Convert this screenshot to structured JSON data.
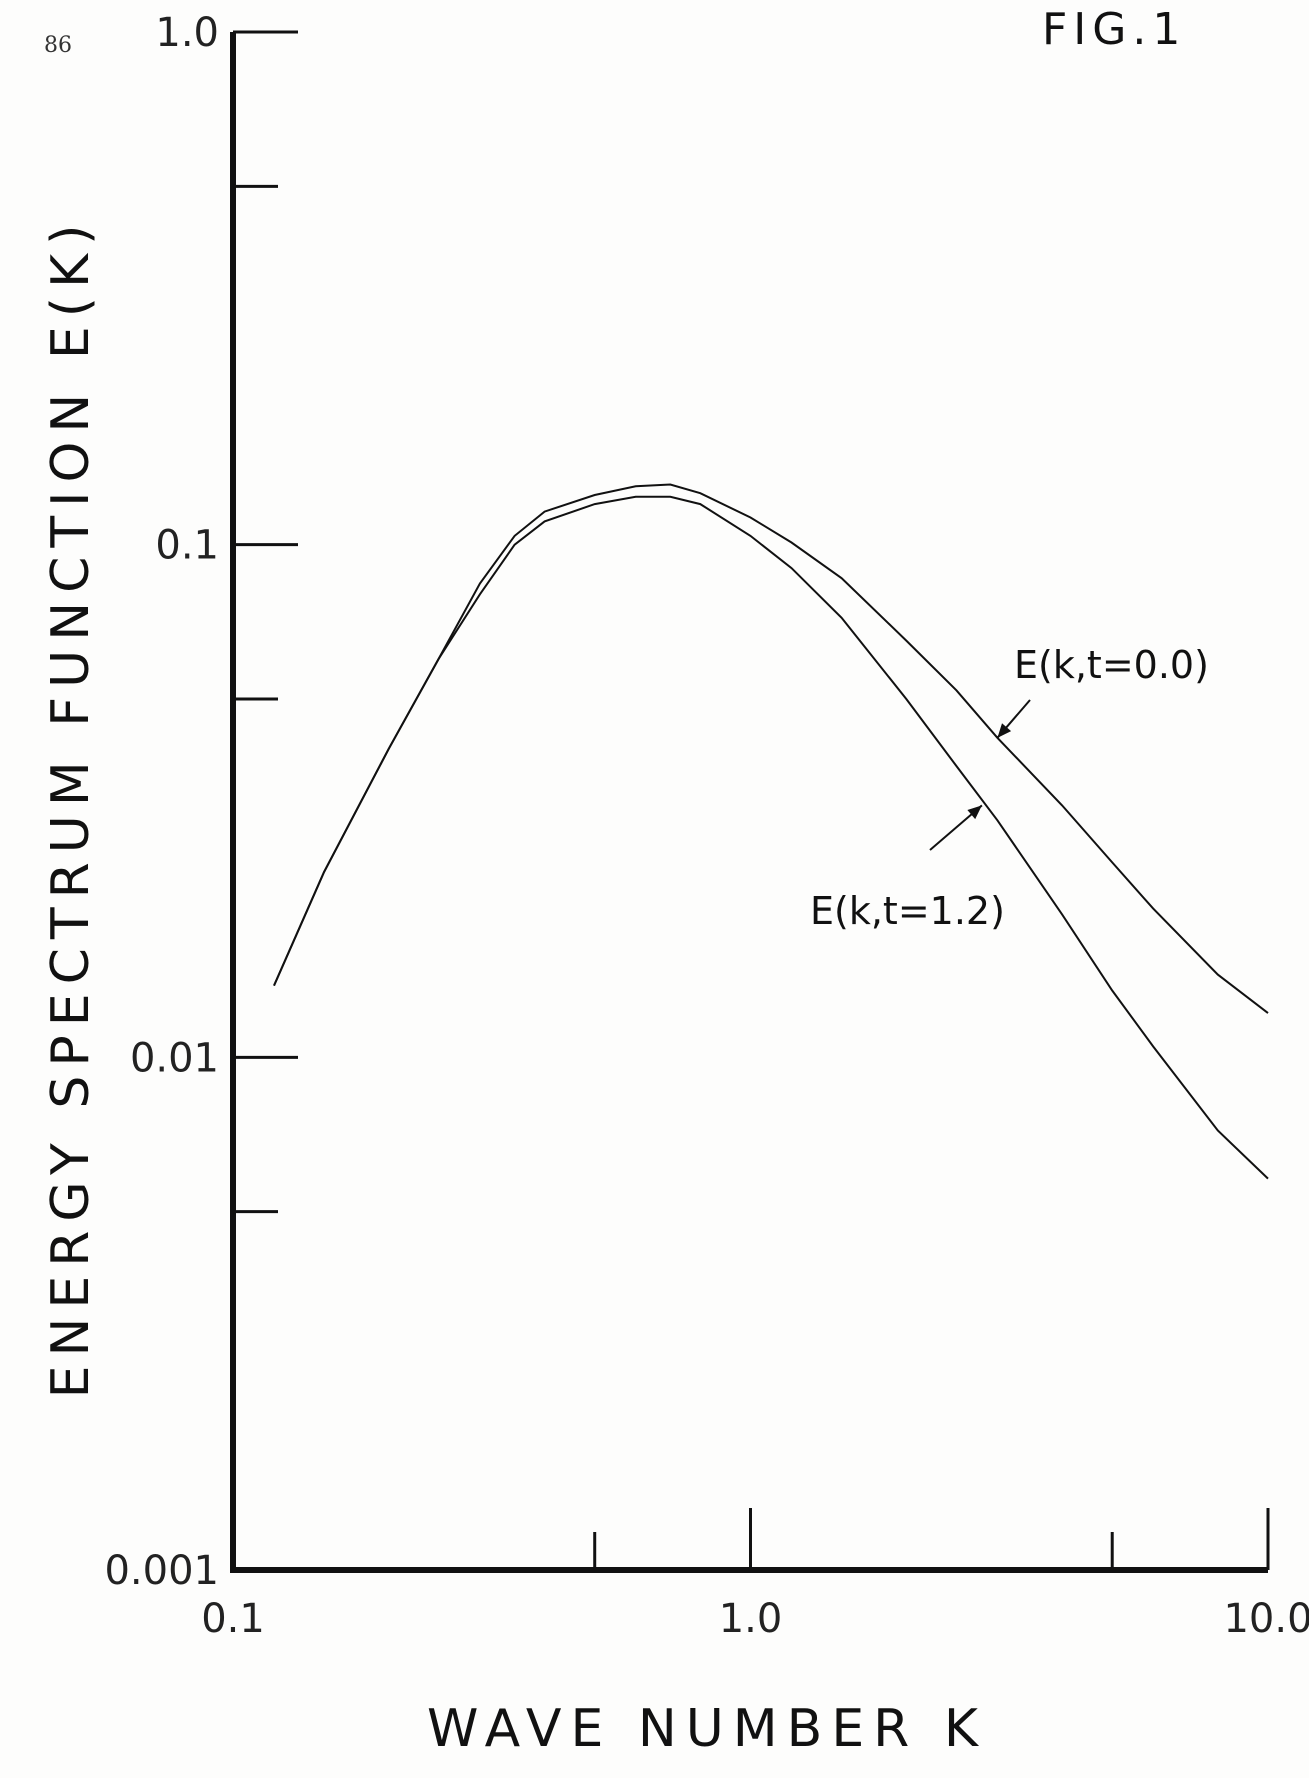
{
  "page_number": "86",
  "figure_label": "FIG.1",
  "chart_data": {
    "type": "line",
    "xscale": "log",
    "yscale": "log",
    "xlim": [
      0.1,
      10.0
    ],
    "ylim": [
      0.001,
      1.0
    ],
    "xlabel": "WAVE NUMBER K",
    "ylabel": "ENERGY SPECTRUM FUNCTION E(K)",
    "x_ticks": [
      {
        "value": 0.1,
        "label": "0.1"
      },
      {
        "value": 1.0,
        "label": "1.0"
      },
      {
        "value": 10.0,
        "label": "10.0"
      }
    ],
    "x_minor_ticks": [
      0.5,
      5.0
    ],
    "y_ticks": [
      {
        "value": 0.001,
        "label": "0.001"
      },
      {
        "value": 0.01,
        "label": "0.01"
      },
      {
        "value": 0.1,
        "label": "0.1"
      },
      {
        "value": 1.0,
        "label": "1.0"
      }
    ],
    "y_minor_ticks": [
      0.005,
      0.05,
      0.5
    ],
    "grid": false,
    "series": [
      {
        "name": "E(k,t=0.0)",
        "x": [
          0.12,
          0.15,
          0.2,
          0.25,
          0.3,
          0.35,
          0.4,
          0.5,
          0.6,
          0.7,
          0.8,
          1.0,
          1.2,
          1.5,
          2.0,
          2.5,
          3.0,
          4.0,
          5.0,
          6.0,
          8.0,
          10.0
        ],
        "y": [
          0.0138,
          0.023,
          0.04,
          0.06,
          0.084,
          0.104,
          0.116,
          0.125,
          0.13,
          0.131,
          0.126,
          0.113,
          0.101,
          0.086,
          0.065,
          0.052,
          0.042,
          0.031,
          0.024,
          0.0195,
          0.0145,
          0.0122
        ]
      },
      {
        "name": "E(k,t=1.2)",
        "x": [
          0.12,
          0.15,
          0.2,
          0.25,
          0.3,
          0.35,
          0.4,
          0.5,
          0.6,
          0.7,
          0.8,
          1.0,
          1.2,
          1.5,
          2.0,
          2.5,
          3.0,
          4.0,
          5.0,
          6.0,
          8.0,
          10.0
        ],
        "y": [
          0.0138,
          0.023,
          0.04,
          0.06,
          0.08,
          0.1,
          0.111,
          0.12,
          0.124,
          0.124,
          0.12,
          0.104,
          0.09,
          0.072,
          0.05,
          0.037,
          0.029,
          0.019,
          0.0135,
          0.0105,
          0.0072,
          0.0058
        ]
      }
    ],
    "annotations": [
      {
        "text": "E(k,t=0.0)",
        "series": 0,
        "arrow_to": {
          "x": 3.0,
          "y": 0.042
        }
      },
      {
        "text": "E(k,t=1.2)",
        "series": 1,
        "arrow_to": {
          "x": 2.8,
          "y": 0.031
        }
      }
    ]
  }
}
